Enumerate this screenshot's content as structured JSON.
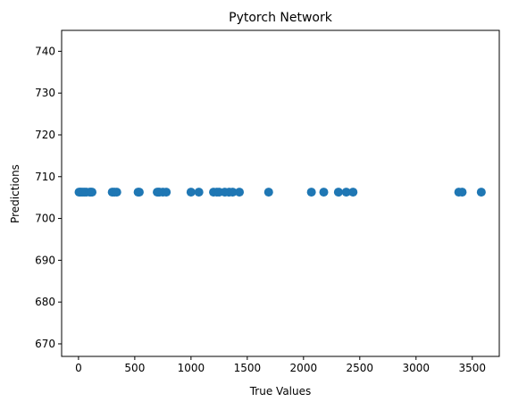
{
  "chart_data": {
    "type": "scatter",
    "title": "Pytorch Network",
    "xlabel": "True Values",
    "ylabel": "Predictions",
    "xlim": [
      -150,
      3740
    ],
    "ylim": [
      667,
      745
    ],
    "x_ticks": [
      0,
      500,
      1000,
      1500,
      2000,
      2500,
      3000,
      3500
    ],
    "y_ticks": [
      670,
      680,
      690,
      700,
      710,
      720,
      730,
      740
    ],
    "grid": false,
    "legend": "none",
    "marker_color": "#1f77b4",
    "series": [
      {
        "x": [
          5,
          15,
          25,
          40,
          55,
          70,
          100,
          110,
          120,
          300,
          320,
          340,
          530,
          540,
          700,
          710,
          720,
          750,
          780,
          1000,
          1070,
          1200,
          1230,
          1250,
          1300,
          1340,
          1370,
          1430,
          1690,
          2070,
          2180,
          2310,
          2380,
          2440,
          3380,
          3410,
          3580
        ],
        "y": [
          706.3,
          706.3,
          706.3,
          706.3,
          706.3,
          706.3,
          706.3,
          706.3,
          706.3,
          706.3,
          706.3,
          706.3,
          706.3,
          706.3,
          706.3,
          706.3,
          706.3,
          706.3,
          706.3,
          706.3,
          706.3,
          706.3,
          706.3,
          706.3,
          706.3,
          706.3,
          706.3,
          706.3,
          706.3,
          706.3,
          706.3,
          706.3,
          706.3,
          706.3,
          706.3,
          706.3,
          706.3
        ]
      }
    ]
  }
}
